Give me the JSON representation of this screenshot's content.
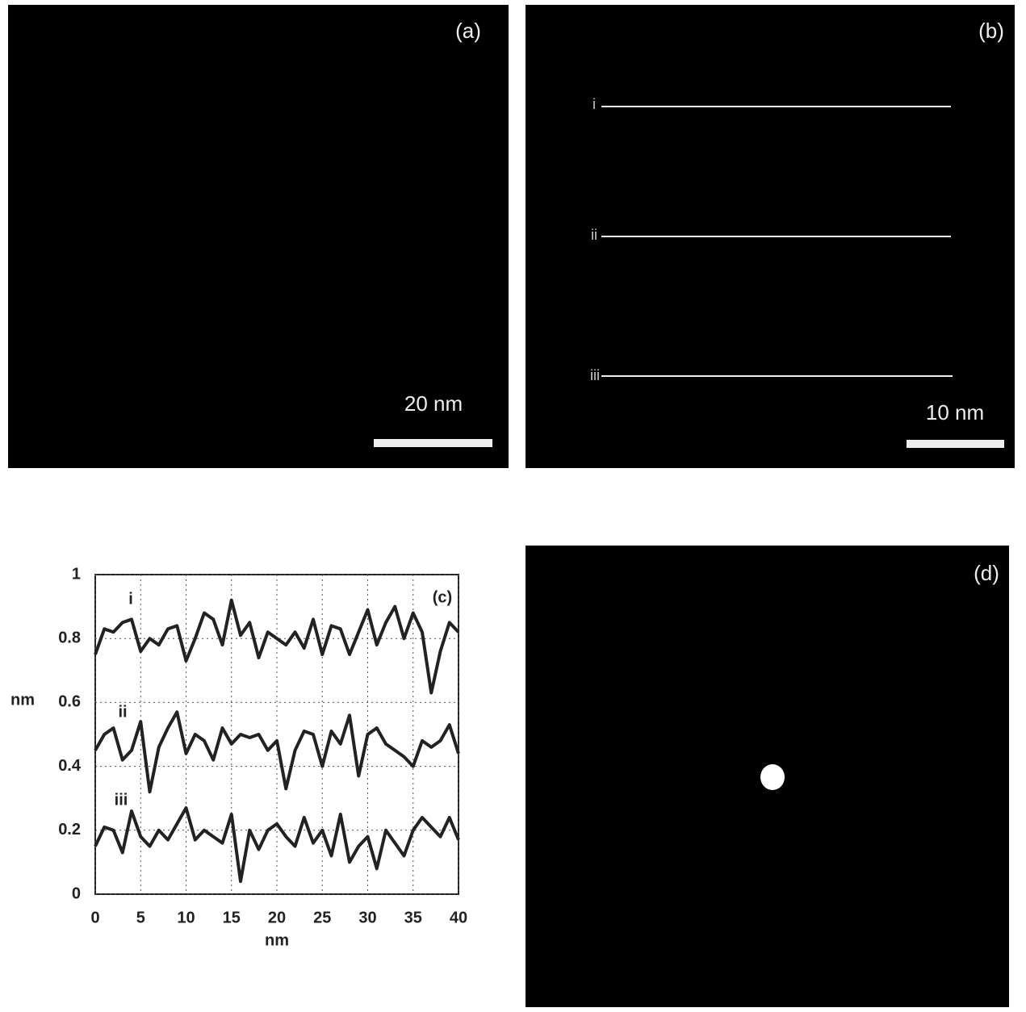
{
  "panels": {
    "a": {
      "label": "(a)",
      "scale": "20 nm"
    },
    "b": {
      "label": "(b)",
      "scale": "10 nm",
      "lines": [
        "i",
        "ii",
        "iii"
      ]
    },
    "d": {
      "label": "(d)"
    }
  },
  "chart_data": {
    "type": "line",
    "annotation": "(c)",
    "x_label": "nm",
    "y_label": "nm",
    "x": [
      0,
      1,
      2,
      3,
      4,
      5,
      6,
      7,
      8,
      9,
      10,
      11,
      12,
      13,
      14,
      15,
      16,
      17,
      18,
      19,
      20,
      21,
      22,
      23,
      24,
      25,
      26,
      27,
      28,
      29,
      30,
      31,
      32,
      33,
      34,
      35,
      36,
      37,
      38,
      39,
      40
    ],
    "series": [
      {
        "name": "i",
        "color": "#222222",
        "values": [
          0.75,
          0.83,
          0.82,
          0.85,
          0.86,
          0.76,
          0.8,
          0.78,
          0.83,
          0.84,
          0.73,
          0.8,
          0.88,
          0.86,
          0.78,
          0.92,
          0.81,
          0.85,
          0.74,
          0.82,
          0.8,
          0.78,
          0.82,
          0.77,
          0.86,
          0.75,
          0.84,
          0.83,
          0.75,
          0.82,
          0.89,
          0.78,
          0.85,
          0.9,
          0.8,
          0.88,
          0.82,
          0.63,
          0.76,
          0.85,
          0.82
        ]
      },
      {
        "name": "ii",
        "color": "#222222",
        "values": [
          0.45,
          0.5,
          0.52,
          0.42,
          0.45,
          0.54,
          0.32,
          0.46,
          0.52,
          0.57,
          0.44,
          0.5,
          0.48,
          0.42,
          0.52,
          0.47,
          0.5,
          0.49,
          0.5,
          0.45,
          0.48,
          0.33,
          0.45,
          0.51,
          0.5,
          0.4,
          0.51,
          0.47,
          0.56,
          0.37,
          0.5,
          0.52,
          0.47,
          0.45,
          0.43,
          0.4,
          0.48,
          0.46,
          0.48,
          0.53,
          0.44
        ]
      },
      {
        "name": "iii",
        "color": "#222222",
        "values": [
          0.15,
          0.21,
          0.2,
          0.13,
          0.26,
          0.18,
          0.15,
          0.2,
          0.17,
          0.22,
          0.27,
          0.17,
          0.2,
          0.18,
          0.16,
          0.25,
          0.04,
          0.2,
          0.14,
          0.2,
          0.22,
          0.18,
          0.15,
          0.24,
          0.16,
          0.2,
          0.12,
          0.25,
          0.1,
          0.15,
          0.18,
          0.08,
          0.2,
          0.16,
          0.12,
          0.2,
          0.24,
          0.21,
          0.18,
          0.24,
          0.17
        ]
      }
    ],
    "xlim": [
      0,
      40
    ],
    "xticks": [
      0,
      5,
      10,
      15,
      20,
      25,
      30,
      35,
      40
    ],
    "ylim": [
      0,
      1
    ],
    "yticks": [
      0,
      0.2,
      0.4,
      0.6,
      0.8,
      1
    ],
    "grid": true
  }
}
